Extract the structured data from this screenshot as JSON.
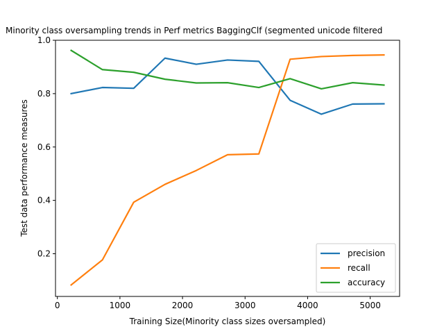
{
  "chart_data": {
    "type": "line",
    "title": "Minority class oversampling trends in Perf metrics BaggingClf (segmented unicode filtered",
    "xlabel": "Training Size(Minority class sizes oversampled)",
    "ylabel": "Test data performance measures",
    "xlim": [
      -30,
      5470
    ],
    "ylim": [
      0.04,
      1.0
    ],
    "xticks": [
      0,
      1000,
      2000,
      3000,
      4000,
      5000
    ],
    "yticks": [
      0.2,
      0.4,
      0.6,
      0.8,
      1.0
    ],
    "xtick_labels": [
      "0",
      "1000",
      "2000",
      "3000",
      "4000",
      "5000"
    ],
    "ytick_labels": [
      "0.2",
      "0.4",
      "0.6",
      "0.8",
      "1.0"
    ],
    "x": [
      220,
      720,
      1220,
      1720,
      2220,
      2720,
      3220,
      3720,
      4220,
      4720,
      5220
    ],
    "series": [
      {
        "name": "precision",
        "color": "#1f77b4",
        "values": [
          0.8,
          0.823,
          0.82,
          0.933,
          0.91,
          0.926,
          0.921,
          0.775,
          0.723,
          0.761,
          0.762
        ]
      },
      {
        "name": "recall",
        "color": "#ff7f0e",
        "values": [
          0.083,
          0.177,
          0.393,
          0.46,
          0.512,
          0.571,
          0.574,
          0.929,
          0.939,
          0.943,
          0.945
        ]
      },
      {
        "name": "accuracy",
        "color": "#2ca02c",
        "values": [
          0.962,
          0.89,
          0.88,
          0.854,
          0.84,
          0.841,
          0.823,
          0.856,
          0.818,
          0.841,
          0.832
        ]
      }
    ],
    "legend_position": "lower-right",
    "grid": false
  }
}
